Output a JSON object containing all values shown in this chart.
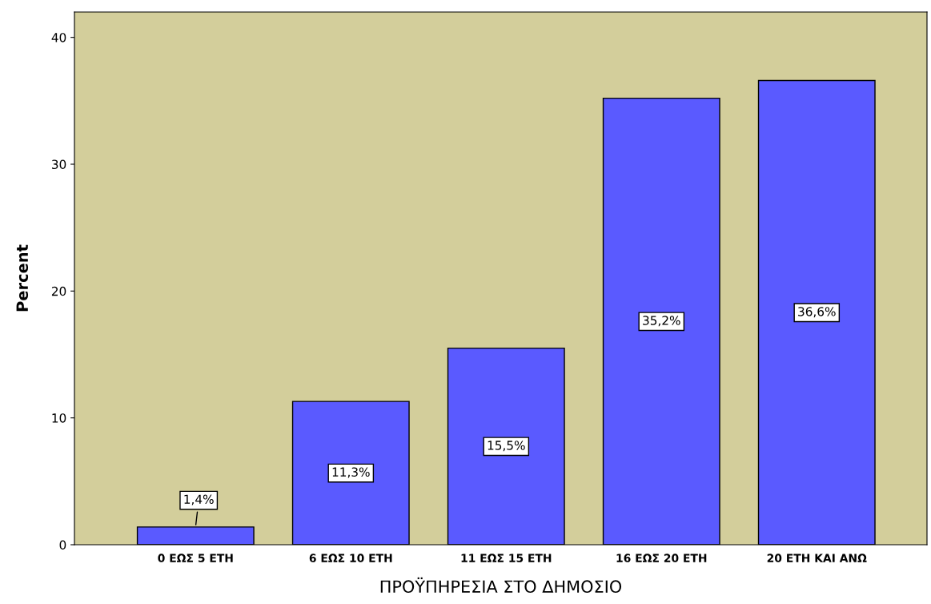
{
  "chart_data": {
    "type": "bar",
    "xlabel": "ΠΡΟΫΠΗΡΕΣΙΑ ΣΤΟ ΔΗΜΟΣΙΟ",
    "ylabel": "Percent",
    "categories": [
      "0 ΕΩΣ 5 ΕΤΗ",
      "6 ΕΩΣ 10 ΕΤΗ",
      "11 ΕΩΣ 15 ΕΤΗ",
      "16 ΕΩΣ 20 ΕΤΗ",
      "20 ΕΤΗ ΚΑΙ ΑΝΩ"
    ],
    "values": [
      1.4,
      11.3,
      15.5,
      35.2,
      36.6
    ],
    "value_labels": [
      "1,4%",
      "11,3%",
      "15,5%",
      "35,2%",
      "36,6%"
    ],
    "color": "#5a5aff",
    "ylim": [
      0,
      42
    ],
    "yticks": [
      0,
      10,
      20,
      30,
      40
    ],
    "grid": false,
    "legend": false
  }
}
